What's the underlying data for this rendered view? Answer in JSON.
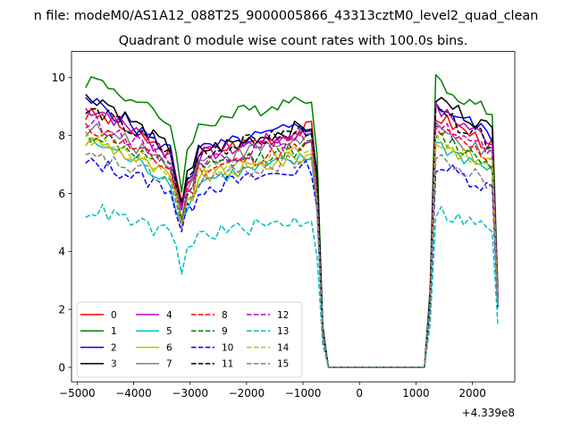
{
  "figure": {
    "suptitle": "n file: modeM0/AS1A12_088T25_9000005866_43313cztM0_level2_quad_clean"
  },
  "chart_data": {
    "type": "line",
    "title": "Quadrant 0 module wise count rates with 100.0s bins.",
    "xlabel": "",
    "ylabel": "",
    "offset_text": "+4.339e8",
    "xlim": [
      -5100,
      2750
    ],
    "ylim": [
      -0.5,
      10.9
    ],
    "x_ticks": [
      -5000,
      -4000,
      -3000,
      -2000,
      -1000,
      0,
      1000,
      2000
    ],
    "x_tick_labels": [
      "−5000",
      "−4000",
      "−3000",
      "−2000",
      "−1000",
      "0",
      "1000",
      "2000"
    ],
    "y_ticks": [
      0,
      2,
      4,
      6,
      8,
      10
    ],
    "y_tick_labels": [
      "0",
      "2",
      "4",
      "6",
      "8",
      "10"
    ],
    "grid": false,
    "legend": {
      "placement": "lower-left",
      "columns": 4
    },
    "x_start": -4850,
    "x_step": 100,
    "gap_indices": [
      43,
      44,
      45,
      46,
      47,
      48,
      49,
      50,
      51,
      52,
      53,
      54,
      55,
      56,
      57,
      58,
      59,
      60
    ],
    "series": [
      {
        "name": "0",
        "color": "#ff0000",
        "dash": "solid",
        "base": 7.9,
        "std": 8.7
      },
      {
        "name": "1",
        "color": "#008000",
        "dash": "solid",
        "base": 9.0,
        "std": 9.9
      },
      {
        "name": "2",
        "color": "#0000ff",
        "dash": "solid",
        "base": 8.0,
        "std": 9.1
      },
      {
        "name": "3",
        "color": "#000000",
        "dash": "solid",
        "base": 8.0,
        "std": 9.3
      },
      {
        "name": "4",
        "color": "#bf00bf",
        "dash": "solid",
        "base": 7.8,
        "std": 8.9
      },
      {
        "name": "5",
        "color": "#00bfbf",
        "dash": "solid",
        "base": 6.9,
        "std": 7.7
      },
      {
        "name": "6",
        "color": "#bfbf00",
        "dash": "solid",
        "base": 7.0,
        "std": 7.8
      },
      {
        "name": "7",
        "color": "#808080",
        "dash": "solid",
        "base": 7.6,
        "std": 8.2
      },
      {
        "name": "8",
        "color": "#ff0000",
        "dash": "dashed",
        "base": 7.3,
        "std": 8.2
      },
      {
        "name": "9",
        "color": "#008000",
        "dash": "dashed",
        "base": 7.3,
        "std": 8.0
      },
      {
        "name": "10",
        "color": "#0000ff",
        "dash": "dashed",
        "base": 6.6,
        "std": 7.0
      },
      {
        "name": "11",
        "color": "#000000",
        "dash": "dashed",
        "base": 7.9,
        "std": 8.8
      },
      {
        "name": "12",
        "color": "#bf00bf",
        "dash": "dashed",
        "base": 7.6,
        "std": 8.4
      },
      {
        "name": "13",
        "color": "#00bfbf",
        "dash": "dashed",
        "base": 4.9,
        "std": 5.4
      },
      {
        "name": "14",
        "color": "#bfbf00",
        "dash": "dashed",
        "base": 7.2,
        "std": 7.9
      },
      {
        "name": "15",
        "color": "#808080",
        "dash": "dashed",
        "base": 6.9,
        "std": 7.2
      }
    ]
  }
}
